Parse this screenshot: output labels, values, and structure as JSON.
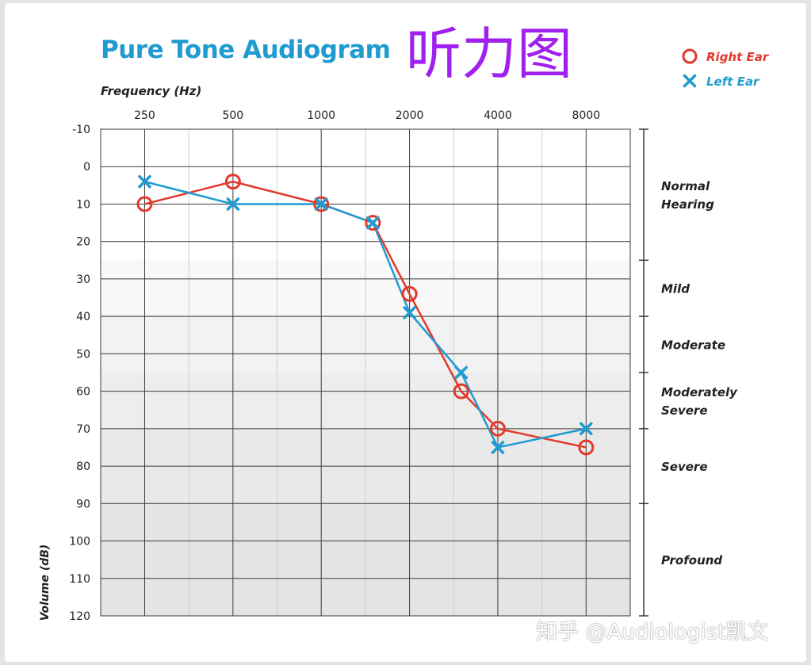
{
  "title": "Pure Tone Audiogram",
  "cjk_title": "听力图",
  "watermark": "知乎 @Audiologist凯文",
  "colors": {
    "title": "#1f9bd0",
    "cjk_title": "#a020f0",
    "right_ear": "#e23a2c",
    "left_ear": "#1f9bd0",
    "grid": "#3a3a3a",
    "text": "#222222"
  },
  "legend": {
    "position": "top-right",
    "items": [
      {
        "label": "Right Ear",
        "marker": "circle",
        "color": "#e23a2c"
      },
      {
        "label": "Left Ear",
        "marker": "x",
        "color": "#1f9bd0"
      }
    ]
  },
  "chart_data": {
    "type": "line",
    "xlabel": "Frequency (Hz)",
    "ylabel": "Volume (dB)",
    "x_ticks": [
      "250",
      "500",
      "1000",
      "2000",
      "4000",
      "8000"
    ],
    "x_tick_values": [
      250,
      500,
      1000,
      2000,
      4000,
      8000
    ],
    "x_scale": "log2",
    "x_range": [
      177,
      11314
    ],
    "y_ticks": [
      "-10",
      "0",
      "10",
      "20",
      "30",
      "40",
      "50",
      "60",
      "70",
      "80",
      "90",
      "100",
      "110",
      "120"
    ],
    "ylim": [
      -10,
      120
    ],
    "y_inverted": true,
    "grid": true,
    "series": [
      {
        "name": "Right Ear",
        "marker": "circle",
        "color": "#e23a2c",
        "points": [
          {
            "x": 250,
            "y": 10
          },
          {
            "x": 500,
            "y": 4
          },
          {
            "x": 1000,
            "y": 10
          },
          {
            "x": 1500,
            "y": 15
          },
          {
            "x": 2000,
            "y": 34
          },
          {
            "x": 3000,
            "y": 60
          },
          {
            "x": 4000,
            "y": 70
          },
          {
            "x": 8000,
            "y": 75
          }
        ]
      },
      {
        "name": "Left Ear",
        "marker": "x",
        "color": "#1f9bd0",
        "points": [
          {
            "x": 250,
            "y": 4
          },
          {
            "x": 500,
            "y": 10
          },
          {
            "x": 1000,
            "y": 10
          },
          {
            "x": 1500,
            "y": 15
          },
          {
            "x": 2000,
            "y": 39
          },
          {
            "x": 3000,
            "y": 55
          },
          {
            "x": 4000,
            "y": 75
          },
          {
            "x": 8000,
            "y": 70
          }
        ]
      }
    ],
    "severity_bands": [
      {
        "label": "Normal\nHearing",
        "from": -10,
        "to": 25,
        "shade": "#ffffff"
      },
      {
        "label": "Mild",
        "from": 25,
        "to": 40,
        "shade": "#f8f8f8"
      },
      {
        "label": "Moderate",
        "from": 40,
        "to": 55,
        "shade": "#f2f2f2"
      },
      {
        "label": "Moderately\nSevere",
        "from": 55,
        "to": 70,
        "shade": "#ededed"
      },
      {
        "label": "Severe",
        "from": 70,
        "to": 90,
        "shade": "#e9e9e9"
      },
      {
        "label": "Profound",
        "from": 90,
        "to": 120,
        "shade": "#e4e4e4"
      }
    ]
  }
}
